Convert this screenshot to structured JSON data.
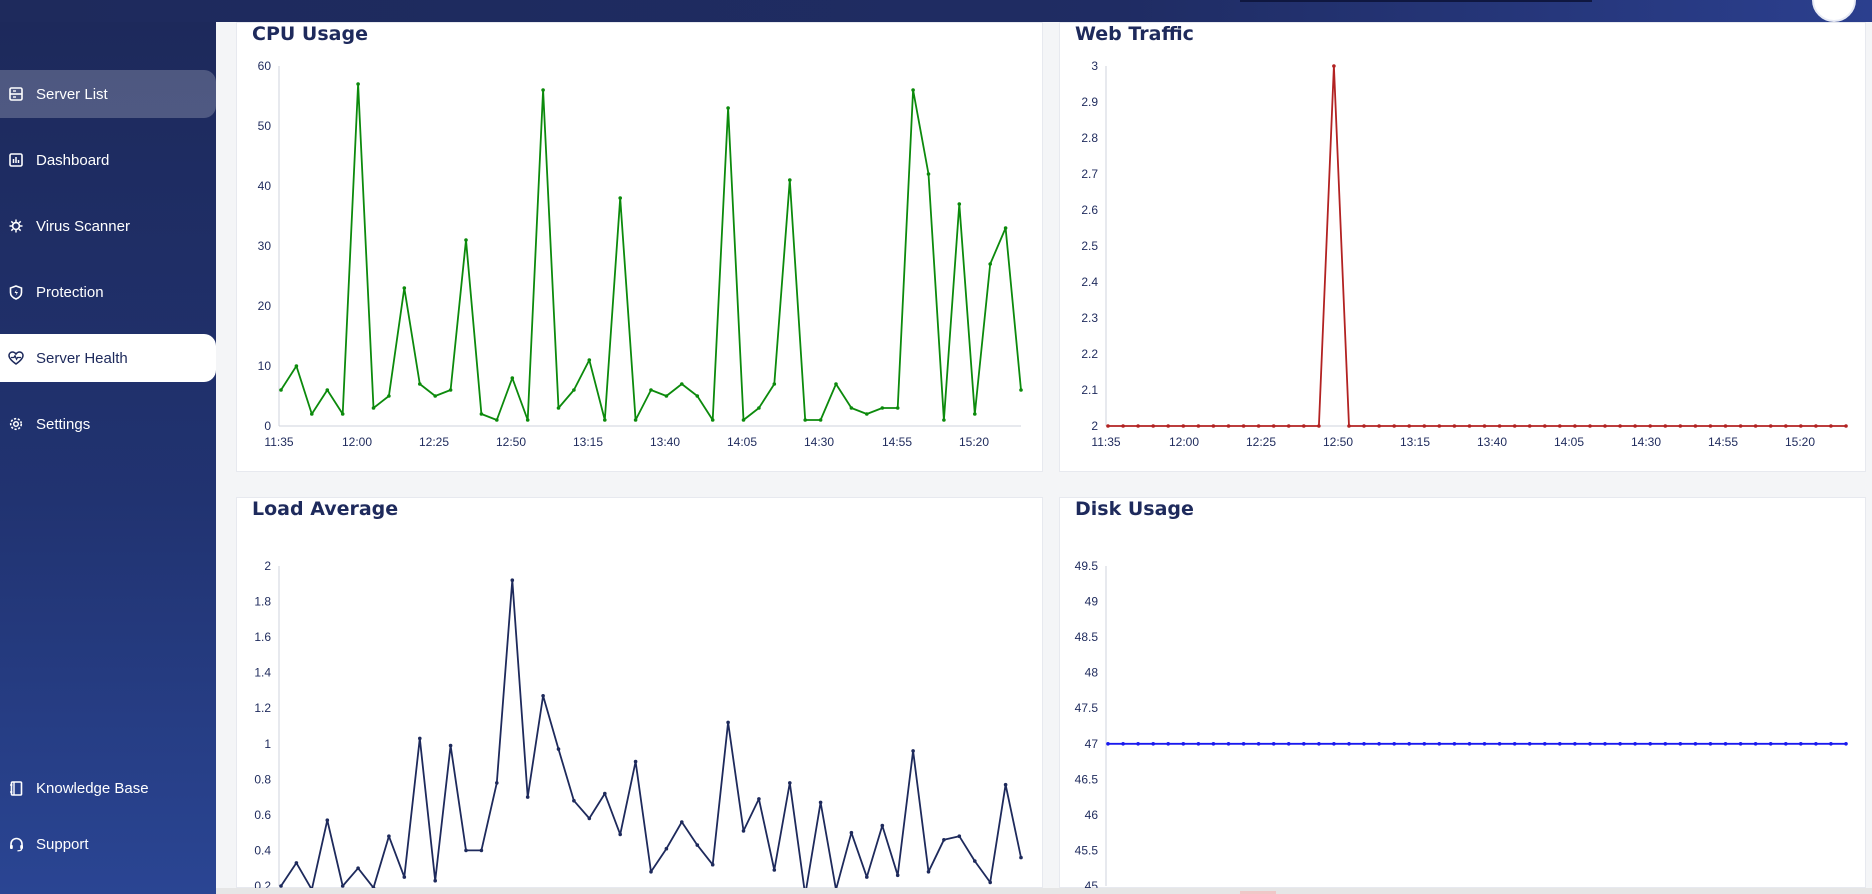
{
  "sidebar": {
    "items": [
      {
        "label": "Server List",
        "icon": "server-list-icon"
      },
      {
        "label": "Dashboard",
        "icon": "bar-chart-icon"
      },
      {
        "label": "Virus Scanner",
        "icon": "virus-icon"
      },
      {
        "label": "Protection",
        "icon": "shield-icon"
      },
      {
        "label": "Server Health",
        "icon": "heart-pulse-icon"
      },
      {
        "label": "Settings",
        "icon": "gear-icon"
      }
    ],
    "bottom_items": [
      {
        "label": "Knowledge Base",
        "icon": "book-icon"
      },
      {
        "label": "Support",
        "icon": "headset-icon"
      }
    ]
  },
  "cards": {
    "cpu": {
      "title": "CPU Usage"
    },
    "web": {
      "title": "Web Traffic"
    },
    "load": {
      "title": "Load Average"
    },
    "disk": {
      "title": "Disk Usage"
    }
  },
  "colors": {
    "cpu_line": "#0c8a0c",
    "web_line": "#b22222",
    "load_line": "#1e2a5c",
    "disk_line": "#1a1aee"
  },
  "chart_data": [
    {
      "type": "line",
      "title": "CPU Usage",
      "x_tick_labels": [
        "11:35",
        "12:00",
        "12:25",
        "12:50",
        "13:15",
        "13:40",
        "14:05",
        "14:30",
        "14:55",
        "15:20"
      ],
      "ylim": [
        0,
        60
      ],
      "y_ticks": [
        0,
        10,
        20,
        30,
        40,
        50,
        60
      ],
      "grid": false,
      "series": [
        {
          "values": [
            6,
            10,
            2,
            6,
            2,
            57,
            3,
            5,
            23,
            7,
            5,
            6,
            31,
            2,
            1,
            8,
            1,
            56,
            3,
            6,
            11,
            1,
            38,
            1,
            6,
            5,
            7,
            5,
            1,
            53,
            1,
            3,
            7,
            41,
            1,
            1,
            7,
            3,
            2,
            3,
            3,
            56,
            42,
            1,
            37,
            2,
            27,
            33,
            6
          ]
        }
      ]
    },
    {
      "type": "line",
      "title": "Web Traffic",
      "x_tick_labels": [
        "11:35",
        "12:00",
        "12:25",
        "12:50",
        "13:15",
        "13:40",
        "14:05",
        "14:30",
        "14:55",
        "15:20"
      ],
      "ylim": [
        2,
        3
      ],
      "y_ticks": [
        "2",
        "2.1",
        "2.2",
        "2.3",
        "2.4",
        "2.5",
        "2.6",
        "2.7",
        "2.8",
        "2.9",
        "3"
      ],
      "grid": false,
      "series": [
        {
          "values": [
            2,
            2,
            2,
            2,
            2,
            2,
            2,
            2,
            2,
            2,
            2,
            2,
            2,
            2,
            2,
            3,
            2,
            2,
            2,
            2,
            2,
            2,
            2,
            2,
            2,
            2,
            2,
            2,
            2,
            2,
            2,
            2,
            2,
            2,
            2,
            2,
            2,
            2,
            2,
            2,
            2,
            2,
            2,
            2,
            2,
            2,
            2,
            2,
            2,
            2
          ]
        }
      ]
    },
    {
      "type": "line",
      "title": "Load Average",
      "ylim": [
        0.2,
        2
      ],
      "y_ticks": [
        "0.2",
        "0.4",
        "0.6",
        "0.8",
        "1",
        "1.2",
        "1.4",
        "1.6",
        "1.8",
        "2"
      ],
      "grid": false,
      "series": [
        {
          "values": [
            0.2,
            0.33,
            0.18,
            0.57,
            0.2,
            0.3,
            0.19,
            0.48,
            0.25,
            1.03,
            0.23,
            0.99,
            0.4,
            0.4,
            0.78,
            1.92,
            0.7,
            1.27,
            0.97,
            0.68,
            0.58,
            0.72,
            0.49,
            0.9,
            0.28,
            0.41,
            0.56,
            0.43,
            0.32,
            1.12,
            0.51,
            0.69,
            0.29,
            0.78,
            0.15,
            0.67,
            0.18,
            0.5,
            0.25,
            0.54,
            0.26,
            0.96,
            0.28,
            0.46,
            0.48,
            0.34,
            0.22,
            0.77,
            0.36
          ]
        }
      ]
    },
    {
      "type": "line",
      "title": "Disk Usage",
      "ylim": [
        45,
        49.5
      ],
      "y_ticks": [
        "45",
        "45.5",
        "46",
        "46.5",
        "47",
        "47.5",
        "48",
        "48.5",
        "49",
        "49.5"
      ],
      "grid": false,
      "series": [
        {
          "values": [
            47,
            47,
            47,
            47,
            47,
            47,
            47,
            47,
            47,
            47,
            47,
            47,
            47,
            47,
            47,
            47,
            47,
            47,
            47,
            47,
            47,
            47,
            47,
            47,
            47,
            47,
            47,
            47,
            47,
            47,
            47,
            47,
            47,
            47,
            47,
            47,
            47,
            47,
            47,
            47,
            47,
            47,
            47,
            47,
            47,
            47,
            47,
            47,
            47,
            47
          ]
        }
      ]
    }
  ]
}
